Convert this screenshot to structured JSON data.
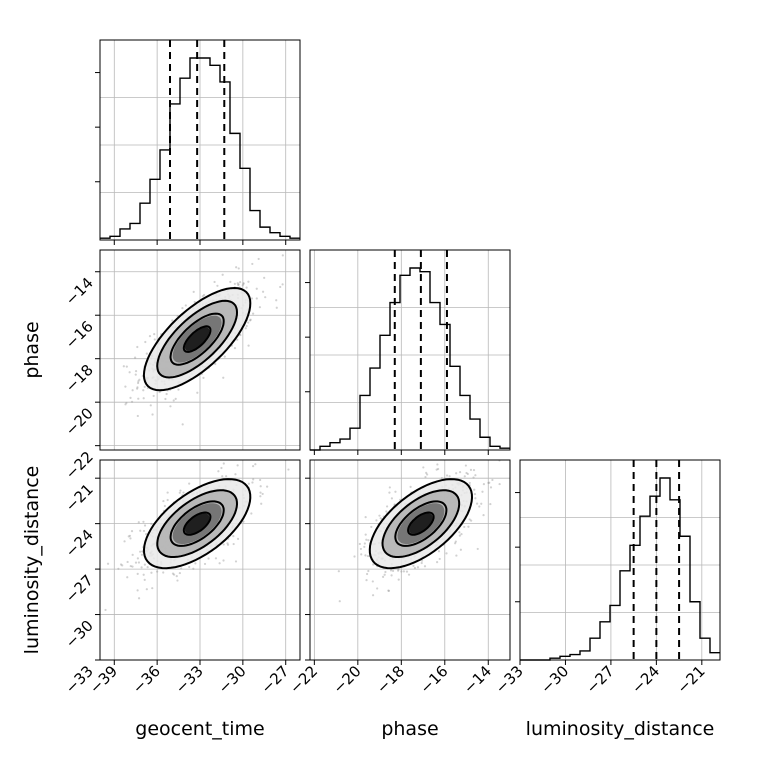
{
  "chart_data": {
    "type": "corner",
    "parameters": [
      {
        "name": "geocent_time",
        "label": "geocent_time",
        "range": [
          -40,
          -26
        ],
        "ticks": [
          -39,
          -36,
          -33,
          -30,
          -27
        ],
        "tick_labels": [
          "−39",
          "−36",
          "−33",
          "−30",
          "−27"
        ],
        "mean": -33.2,
        "sd": 1.9,
        "quantiles": [
          -35.1,
          -33.2,
          -31.3
        ]
      },
      {
        "name": "phase",
        "label": "phase",
        "range": [
          -22.2,
          -13
        ],
        "ticks": [
          -22,
          -20,
          -18,
          -16,
          -14
        ],
        "tick_labels": [
          "−22",
          "−20",
          "−18",
          "−16",
          "−14"
        ],
        "mean": -17.1,
        "sd": 1.2,
        "quantiles": [
          -18.3,
          -17.1,
          -15.9
        ]
      },
      {
        "name": "luminosity_distance",
        "label": "luminosity_distance",
        "range": [
          -33,
          -19.8
        ],
        "ticks": [
          -33,
          -30,
          -27,
          -24,
          -21
        ],
        "tick_labels": [
          "−33",
          "−30",
          "−27",
          "−24",
          "−21"
        ],
        "mean": -24.0,
        "sd": 1.5,
        "quantiles": [
          -25.5,
          -24.0,
          -22.5
        ]
      }
    ],
    "histograms": [
      {
        "parameter": "geocent_time",
        "bin_edges": [
          -40,
          -39.3,
          -38.6,
          -37.9,
          -37.2,
          -36.5,
          -35.8,
          -35.1,
          -34.4,
          -33.7,
          -33,
          -32.3,
          -31.6,
          -30.9,
          -30.2,
          -29.5,
          -28.8,
          -28.1,
          -27.4,
          -26.7,
          -26
        ],
        "counts": [
          0.01,
          0.02,
          0.06,
          0.09,
          0.2,
          0.33,
          0.49,
          0.74,
          0.88,
          0.99,
          0.99,
          0.95,
          0.86,
          0.58,
          0.39,
          0.16,
          0.07,
          0.04,
          0.02,
          0.01
        ]
      },
      {
        "parameter": "phase",
        "bin_edges": [
          -22.2,
          -21.74,
          -21.28,
          -20.82,
          -20.36,
          -19.9,
          -19.44,
          -18.98,
          -18.52,
          -18.06,
          -17.6,
          -17.14,
          -16.68,
          -16.22,
          -15.76,
          -15.3,
          -14.84,
          -14.38,
          -13.92,
          -13.46,
          -13
        ],
        "counts": [
          0.0,
          0.02,
          0.04,
          0.06,
          0.12,
          0.3,
          0.45,
          0.63,
          0.81,
          0.96,
          1.0,
          0.98,
          0.81,
          0.69,
          0.46,
          0.3,
          0.17,
          0.07,
          0.02,
          0.01
        ]
      },
      {
        "parameter": "luminosity_distance",
        "bin_edges": [
          -33,
          -32.34,
          -31.68,
          -31.02,
          -30.36,
          -29.7,
          -29.04,
          -28.38,
          -27.72,
          -27.06,
          -26.4,
          -25.74,
          -25.08,
          -24.42,
          -23.76,
          -23.1,
          -22.44,
          -21.78,
          -21.12,
          -20.46,
          -19.8
        ],
        "counts": [
          0.0,
          0.0,
          0.0,
          0.01,
          0.02,
          0.03,
          0.05,
          0.12,
          0.21,
          0.3,
          0.49,
          0.63,
          0.79,
          0.9,
          1.0,
          0.88,
          0.68,
          0.32,
          0.12,
          0.04
        ]
      }
    ],
    "pairs": [
      {
        "x": "geocent_time",
        "y": "phase",
        "correlation": 0.7
      },
      {
        "x": "geocent_time",
        "y": "luminosity_distance",
        "correlation": 0.6
      },
      {
        "x": "phase",
        "y": "luminosity_distance",
        "correlation": 0.6
      }
    ],
    "contour_sigmas": [
      0.5,
      1.0,
      1.5,
      2.0
    ],
    "grid": true
  }
}
